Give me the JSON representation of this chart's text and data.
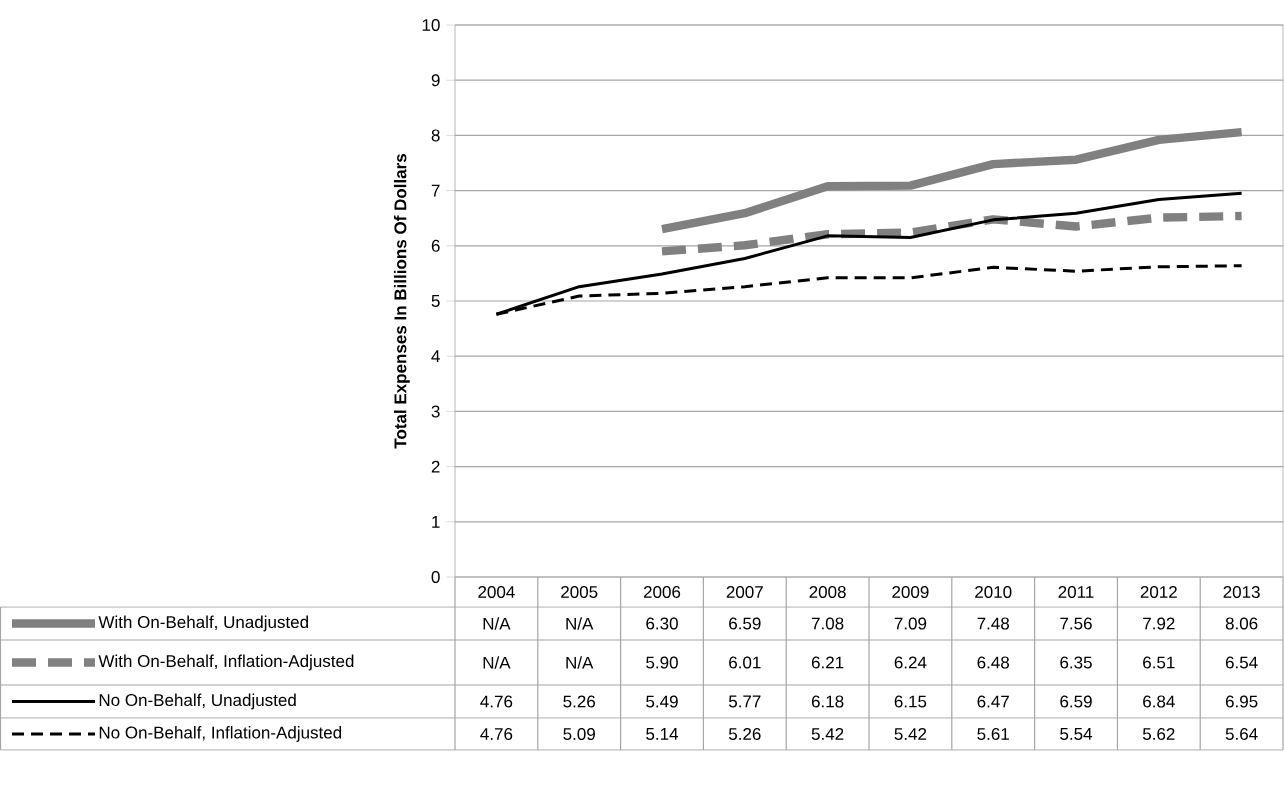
{
  "chart_data": {
    "type": "line",
    "ylabel": "Total Expenses In Billions Of Dollars",
    "categories": [
      "2004",
      "2005",
      "2006",
      "2007",
      "2008",
      "2009",
      "2010",
      "2011",
      "2012",
      "2013"
    ],
    "ylim": [
      0,
      10
    ],
    "yticks": [
      0,
      1,
      2,
      3,
      4,
      5,
      6,
      7,
      8,
      9,
      10
    ],
    "grid": "y",
    "legend": "bottom",
    "series": [
      {
        "name": "With On-Behalf, Unadjusted",
        "color": "#808080",
        "line_style": "solid",
        "values": [
          null,
          null,
          6.3,
          6.59,
          7.08,
          7.09,
          7.48,
          7.56,
          7.92,
          8.06
        ],
        "value_labels": [
          "N/A",
          "N/A",
          "6.30",
          "6.59",
          "7.08",
          "7.09",
          "7.48",
          "7.56",
          "7.92",
          "8.06"
        ]
      },
      {
        "name": "With On-Behalf, Inflation-Adjusted",
        "color": "#808080",
        "line_style": "dashed",
        "values": [
          null,
          null,
          5.9,
          6.01,
          6.21,
          6.24,
          6.48,
          6.35,
          6.51,
          6.54
        ],
        "value_labels": [
          "N/A",
          "N/A",
          "5.90",
          "6.01",
          "6.21",
          "6.24",
          "6.48",
          "6.35",
          "6.51",
          "6.54"
        ]
      },
      {
        "name": "No On-Behalf, Unadjusted",
        "color": "#000000",
        "line_style": "solid",
        "values": [
          4.76,
          5.26,
          5.49,
          5.77,
          6.18,
          6.15,
          6.47,
          6.59,
          6.84,
          6.95
        ],
        "value_labels": [
          "4.76",
          "5.26",
          "5.49",
          "5.77",
          "6.18",
          "6.15",
          "6.47",
          "6.59",
          "6.84",
          "6.95"
        ]
      },
      {
        "name": "No On-Behalf, Inflation-Adjusted",
        "color": "#000000",
        "line_style": "dashed",
        "values": [
          4.76,
          5.09,
          5.14,
          5.26,
          5.42,
          5.42,
          5.61,
          5.54,
          5.62,
          5.64
        ],
        "value_labels": [
          "4.76",
          "5.09",
          "5.14",
          "5.26",
          "5.42",
          "5.42",
          "5.61",
          "5.54",
          "5.62",
          "5.64"
        ]
      }
    ]
  }
}
